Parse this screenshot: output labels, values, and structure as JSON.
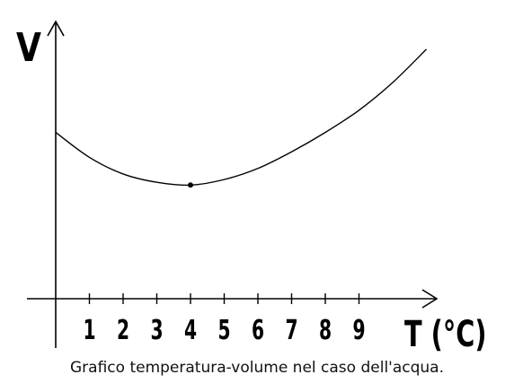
{
  "chart_data": {
    "type": "line",
    "ylabel": "V",
    "xlabel": "T (°C)",
    "x_ticks": [
      "1",
      "2",
      "3",
      "4",
      "5",
      "6",
      "7",
      "8",
      "9"
    ],
    "xlim": [
      -0.6,
      10.1
    ],
    "ylim": [
      0,
      1
    ],
    "y_ticks_shown": false,
    "grid": false,
    "series": [
      {
        "x": [
          0,
          1,
          2,
          3,
          4,
          5,
          6,
          7,
          8,
          9,
          10,
          11
        ],
        "y": [
          0.6,
          0.51,
          0.45,
          0.42,
          0.41,
          0.43,
          0.47,
          0.53,
          0.6,
          0.68,
          0.78,
          0.9
        ],
        "marker_at_x": 4
      }
    ]
  },
  "caption": "Grafico temperatura-volume nel caso dell'acqua."
}
